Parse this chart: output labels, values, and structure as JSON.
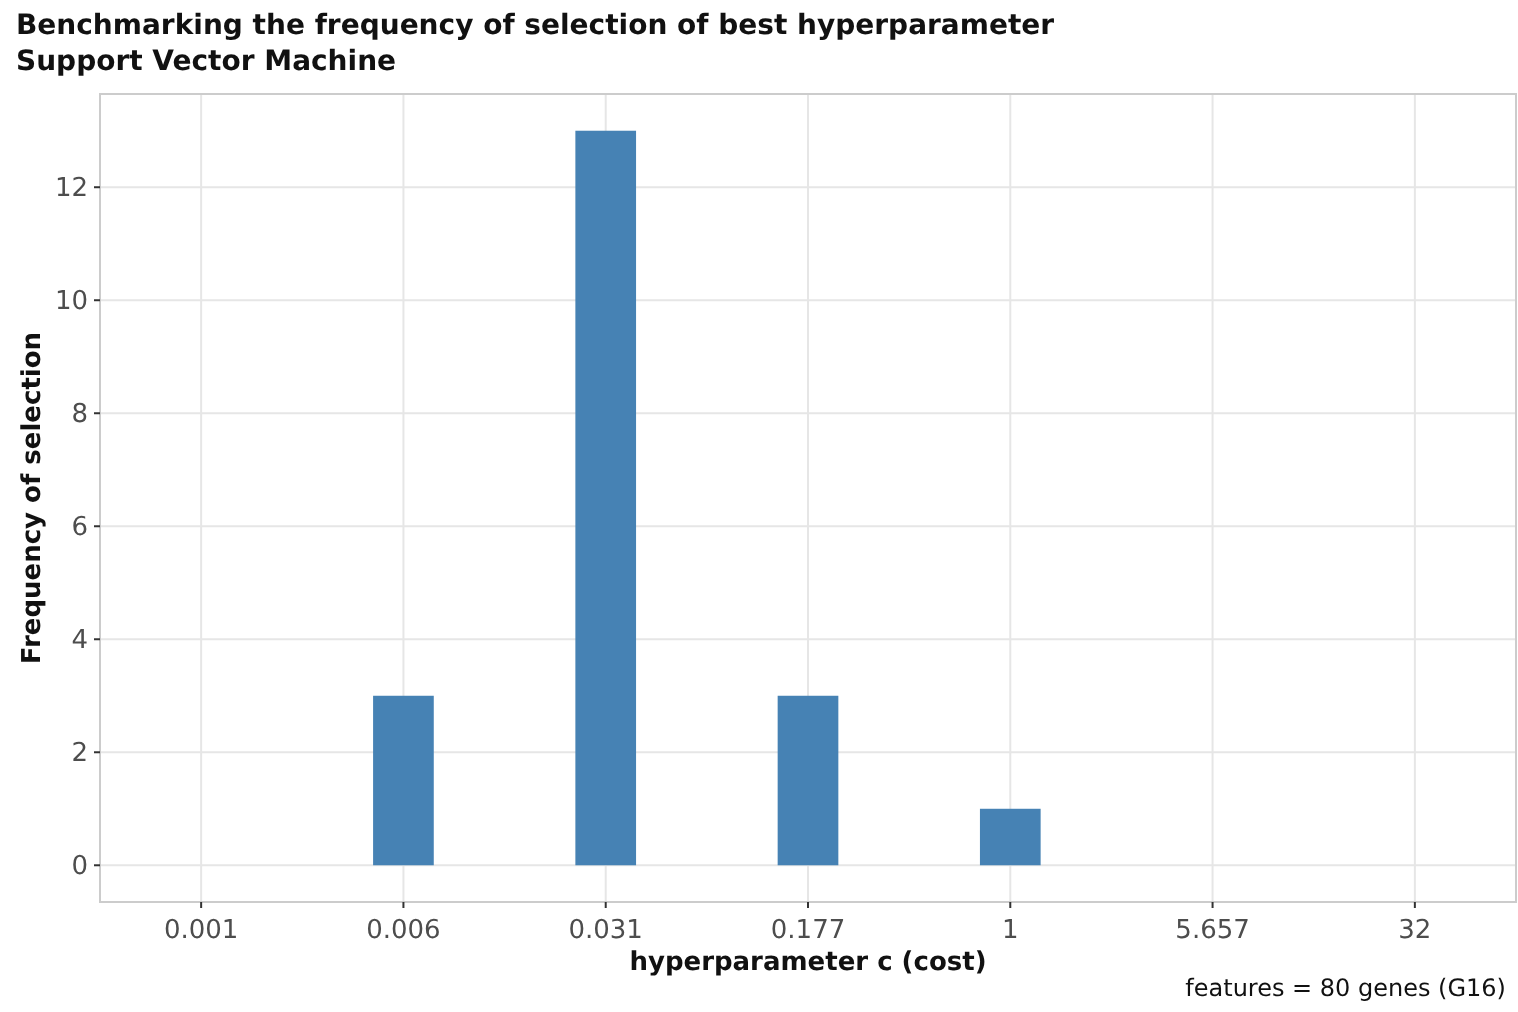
{
  "chart_data": {
    "type": "bar",
    "title": "Benchmarking the frequency of selection of best hyperparameter",
    "subtitle": "Support Vector Machine",
    "xlabel": "hyperparameter c (cost)",
    "ylabel": "Frequency of selection",
    "categories": [
      "0.001",
      "0.006",
      "0.031",
      "0.177",
      "1",
      "5.657",
      "32"
    ],
    "values": [
      0,
      3,
      13,
      3,
      1,
      0,
      0
    ],
    "color": "#4682b4",
    "ylim": [
      -0.65,
      13.65
    ],
    "yticks": [
      0,
      2,
      4,
      6,
      8,
      10,
      12
    ],
    "grid": true,
    "annotations": [
      "features = 80 genes (G16)"
    ]
  }
}
